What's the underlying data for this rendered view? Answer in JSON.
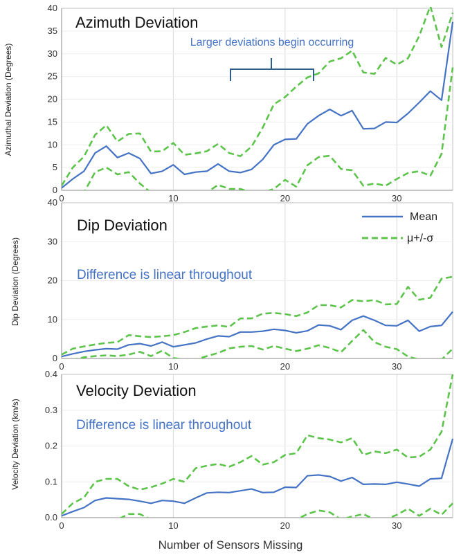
{
  "colors": {
    "mean": "#4472c4",
    "sigma": "#5cc44a",
    "grid": "#d9d9d9",
    "axis": "#888888",
    "annotation": "#4472c4"
  },
  "legend": {
    "mean_label": "Mean",
    "sigma_label": "μ+/-σ"
  },
  "xlabel": "Number of Sensors Missing",
  "chart_data": [
    {
      "type": "line",
      "title": "Azimuth Deviation",
      "ylabel": "Azimuthal Deviation (Degrees)",
      "xlim": [
        0,
        35
      ],
      "ylim": [
        0,
        40
      ],
      "xticks": [
        0,
        10,
        20,
        30
      ],
      "yticks": [
        0,
        5,
        10,
        15,
        20,
        25,
        30,
        35,
        40
      ],
      "ytick_labels": [
        "0",
        "5",
        "10",
        "15",
        "20",
        "25",
        "30",
        "35",
        "40"
      ],
      "annotation": "Larger deviations begin occurring",
      "brace": {
        "x_start": 15,
        "x_end": 22.5,
        "y": 25
      },
      "x": [
        0,
        1,
        2,
        3,
        4,
        5,
        6,
        7,
        8,
        9,
        10,
        11,
        12,
        13,
        14,
        15,
        16,
        17,
        18,
        19,
        20,
        21,
        22,
        23,
        24,
        25,
        26,
        27,
        28,
        29,
        30,
        31,
        32,
        33,
        34,
        35
      ],
      "series": [
        {
          "name": "Mean",
          "style": "solid",
          "values": [
            0.5,
            2.5,
            4.2,
            8.2,
            9.7,
            7.2,
            8.2,
            7.0,
            3.7,
            4.2,
            5.6,
            3.5,
            4.0,
            4.2,
            5.8,
            4.2,
            3.9,
            4.6,
            6.8,
            10.0,
            11.2,
            11.3,
            14.6,
            16.4,
            17.8,
            16.4,
            17.5,
            13.5,
            13.6,
            15.0,
            14.9,
            16.9,
            19.3,
            21.8,
            19.8,
            37.0
          ]
        },
        {
          "name": "μ+σ",
          "style": "dashed",
          "values": [
            1.0,
            5.0,
            7.4,
            12.2,
            14.3,
            10.7,
            12.4,
            12.5,
            8.5,
            8.6,
            10.4,
            7.8,
            8.1,
            8.6,
            10.2,
            8.2,
            7.5,
            9.6,
            13.8,
            18.9,
            20.5,
            22.8,
            24.8,
            25.7,
            28.3,
            29.0,
            30.7,
            25.9,
            25.6,
            29.1,
            27.6,
            29.0,
            33.9,
            40.5,
            31.5,
            39.0
          ]
        },
        {
          "name": "μ-σ",
          "style": "dashed",
          "values": [
            -0.5,
            -0.5,
            -0.5,
            4.0,
            5.0,
            3.5,
            4.0,
            1.5,
            -0.5,
            -0.5,
            -0.5,
            -0.5,
            -0.5,
            -0.5,
            1.2,
            0.3,
            0.3,
            -0.5,
            -0.5,
            0.3,
            2.3,
            0.8,
            5.5,
            7.3,
            7.6,
            4.7,
            4.4,
            1.0,
            1.5,
            1.0,
            2.5,
            3.8,
            4.2,
            3.2,
            8.0,
            27.0
          ]
        }
      ]
    },
    {
      "type": "line",
      "title": "Dip Deviation",
      "ylabel": "Dip Deviation (Degrees)",
      "xlim": [
        0,
        35
      ],
      "ylim": [
        0,
        40
      ],
      "xticks": [
        0,
        10,
        20,
        30
      ],
      "yticks": [
        0,
        10,
        20,
        30,
        40
      ],
      "ytick_labels": [
        "0",
        "10",
        "20",
        "30",
        "40"
      ],
      "annotation": "Difference is linear throughout",
      "legend_position": "top-right",
      "x": [
        0,
        1,
        2,
        3,
        4,
        5,
        6,
        7,
        8,
        9,
        10,
        11,
        12,
        13,
        14,
        15,
        16,
        17,
        18,
        19,
        20,
        21,
        22,
        23,
        24,
        25,
        26,
        27,
        28,
        29,
        30,
        31,
        32,
        33,
        34,
        35
      ],
      "series": [
        {
          "name": "Mean",
          "style": "solid",
          "values": [
            0.5,
            1.2,
            1.8,
            2.2,
            2.5,
            2.4,
            3.5,
            3.8,
            3.2,
            4.2,
            3.0,
            3.5,
            4.0,
            5.0,
            5.8,
            5.6,
            6.8,
            6.8,
            7.0,
            7.5,
            7.2,
            6.6,
            7.1,
            8.6,
            8.4,
            7.4,
            9.8,
            10.9,
            9.8,
            8.5,
            8.4,
            9.8,
            7.0,
            8.2,
            8.5,
            12.0
          ]
        },
        {
          "name": "μ+σ",
          "style": "dashed",
          "values": [
            1.0,
            2.5,
            3.1,
            3.6,
            4.0,
            4.2,
            6.0,
            5.7,
            5.5,
            5.7,
            6.0,
            6.8,
            7.8,
            8.2,
            8.5,
            8.1,
            10.3,
            10.3,
            11.5,
            11.7,
            11.4,
            10.9,
            11.8,
            13.7,
            13.7,
            13.1,
            15.0,
            14.7,
            15.0,
            13.9,
            14.0,
            18.4,
            15.1,
            15.6,
            20.5,
            21.0
          ]
        },
        {
          "name": "μ-σ",
          "style": "dashed",
          "values": [
            -0.3,
            -0.3,
            0.3,
            0.6,
            0.8,
            0.6,
            1.0,
            1.7,
            0.6,
            2.0,
            0.1,
            -0.3,
            -0.3,
            0.6,
            1.4,
            2.6,
            3.0,
            3.2,
            2.3,
            3.2,
            2.5,
            1.9,
            2.5,
            3.4,
            2.7,
            1.6,
            4.5,
            7.3,
            4.2,
            3.0,
            2.4,
            0.5,
            -0.3,
            -0.3,
            -0.3,
            2.5
          ]
        }
      ]
    },
    {
      "type": "line",
      "title": "Velocity Deviation",
      "ylabel": "Velocity Deviation (km/s)",
      "xlim": [
        0,
        35
      ],
      "ylim": [
        0,
        0.4
      ],
      "xticks": [
        0,
        10,
        20,
        30
      ],
      "yticks": [
        0,
        0.1,
        0.2,
        0.3,
        0.4
      ],
      "ytick_labels": [
        "0.0",
        "0.1",
        "0.2",
        "0.3",
        "0.4"
      ],
      "xtick_labels": [
        "0",
        "10",
        "20",
        "30"
      ],
      "annotation": "Difference is linear throughout",
      "x": [
        0,
        1,
        2,
        3,
        4,
        5,
        6,
        7,
        8,
        9,
        10,
        11,
        12,
        13,
        14,
        15,
        16,
        17,
        18,
        19,
        20,
        21,
        22,
        23,
        24,
        25,
        26,
        27,
        28,
        29,
        30,
        31,
        32,
        33,
        34,
        35
      ],
      "series": [
        {
          "name": "Mean",
          "style": "solid",
          "values": [
            0.005,
            0.017,
            0.028,
            0.048,
            0.055,
            0.053,
            0.051,
            0.046,
            0.04,
            0.048,
            0.046,
            0.04,
            0.055,
            0.069,
            0.071,
            0.07,
            0.075,
            0.08,
            0.07,
            0.071,
            0.085,
            0.084,
            0.117,
            0.119,
            0.115,
            0.102,
            0.112,
            0.093,
            0.094,
            0.093,
            0.099,
            0.094,
            0.088,
            0.108,
            0.11,
            0.22
          ]
        },
        {
          "name": "μ+σ",
          "style": "dashed",
          "values": [
            0.01,
            0.04,
            0.056,
            0.1,
            0.108,
            0.108,
            0.088,
            0.078,
            0.085,
            0.095,
            0.108,
            0.1,
            0.138,
            0.145,
            0.15,
            0.142,
            0.155,
            0.172,
            0.148,
            0.155,
            0.175,
            0.18,
            0.23,
            0.222,
            0.218,
            0.21,
            0.222,
            0.175,
            0.185,
            0.18,
            0.19,
            0.168,
            0.17,
            0.19,
            0.24,
            0.4
          ]
        },
        {
          "name": "μ-σ",
          "style": "dashed",
          "values": [
            -0.005,
            -0.005,
            -0.005,
            -0.005,
            -0.005,
            -0.005,
            0.01,
            0.01,
            -0.005,
            -0.005,
            -0.005,
            -0.005,
            -0.005,
            -0.005,
            -0.005,
            -0.005,
            -0.005,
            -0.005,
            -0.005,
            -0.005,
            -0.005,
            -0.005,
            0.01,
            0.02,
            0.015,
            -0.005,
            0.003,
            0.01,
            -0.005,
            -0.005,
            0.008,
            0.025,
            0.005,
            0.025,
            0.008,
            0.04
          ]
        }
      ]
    }
  ]
}
